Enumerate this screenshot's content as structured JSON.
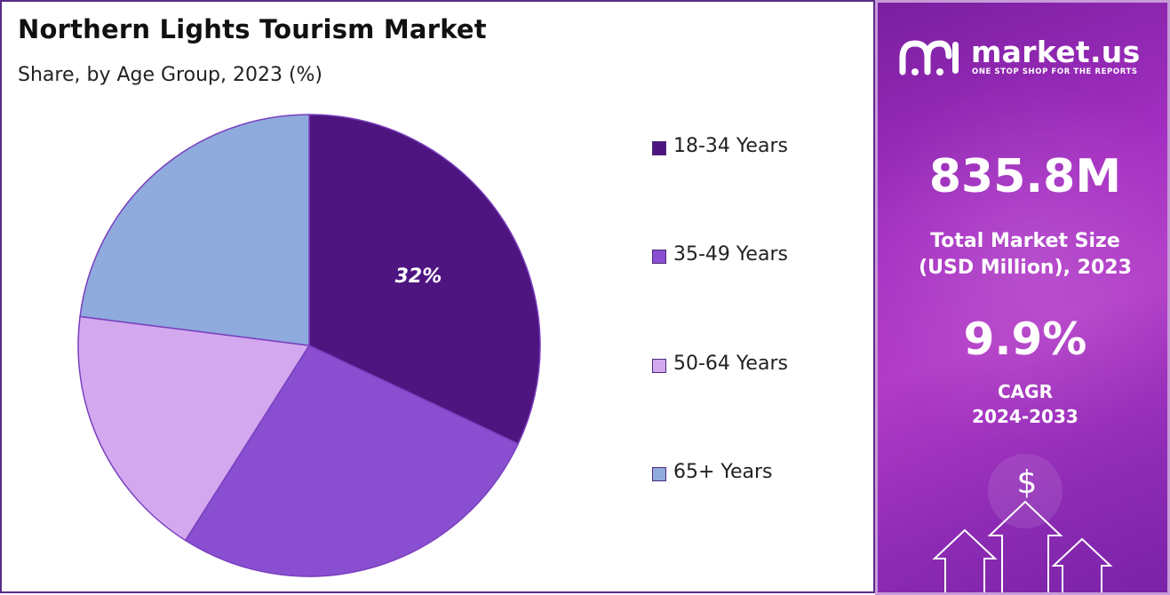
{
  "title": "Northern Lights Tourism Market",
  "subtitle": "Share, by Age Group, 2023 (%)",
  "chart_data": {
    "type": "pie",
    "title": "Northern Lights Tourism Market",
    "subtitle": "Share, by Age Group, 2023 (%)",
    "categories": [
      "18-34 Years",
      "35-49 Years",
      "50-64 Years",
      "65+ Years"
    ],
    "values": [
      32,
      27,
      18,
      23
    ],
    "data_labels": [
      "32%",
      "",
      "",
      ""
    ],
    "colors": [
      "#4e1580",
      "#8a4fd0",
      "#d4a8ee",
      "#8faadc"
    ],
    "legend_position": "right"
  },
  "panel": {
    "brand": "market.us",
    "tagline": "ONE STOP SHOP FOR THE REPORTS",
    "market_size_value": "835.8M",
    "market_size_label_1": "Total Market Size",
    "market_size_label_2": "(USD Million), 2023",
    "cagr_value": "9.9%",
    "cagr_label_1": "CAGR",
    "cagr_label_2": "2024-2033",
    "currency_symbol": "$"
  }
}
